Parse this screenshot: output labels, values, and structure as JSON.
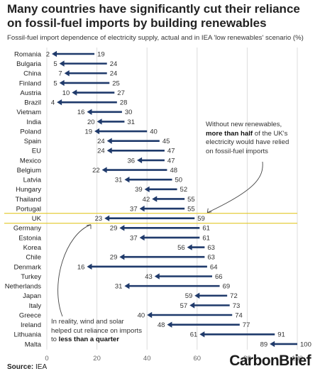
{
  "header": {
    "title": "Many countries have significantly cut their reliance on fossil-fuel imports by building renewables",
    "subtitle": "Fossil-fuel import dependence of electricity supply, actual and in IEA 'low renewables' scenario (%)"
  },
  "footer": {
    "source_label": "Source:",
    "source_value": "IEA",
    "brand": "CarbonBrief"
  },
  "annotations": {
    "uk_note": {
      "line1": "Without new renewables,",
      "bold": "more than half",
      "line2_rest": " of the UK's",
      "line3": "electricity would have relied",
      "line4": "on fossil-fuel imports"
    },
    "reality_note": {
      "line1": "In reality, wind and solar",
      "line2": "helped cut reliance on imports",
      "line3_pre": "to ",
      "bold": "less than a quarter"
    }
  },
  "colors": {
    "arrow": "#1f3a6b",
    "grid": "#dcdcdc",
    "text": "#333333",
    "highlight": "#e3c829"
  },
  "chart_data": {
    "type": "arrow-dot",
    "xlim": [
      0,
      100
    ],
    "xticks": [
      0,
      20,
      40,
      60,
      80,
      100
    ],
    "grid": true,
    "highlight_category": "UK",
    "series": [
      {
        "key": "scenario"
      },
      {
        "key": "actual"
      }
    ],
    "categories": [
      "Romania",
      "Bulgaria",
      "China",
      "Finland",
      "Austria",
      "Brazil",
      "Vietnam",
      "India",
      "Poland",
      "Spain",
      "EU",
      "Mexico",
      "Belgium",
      "Latvia",
      "Hungary",
      "Thailand",
      "Portugal",
      "UK",
      "Germany",
      "Estonia",
      "Korea",
      "Chile",
      "Denmark",
      "Turkey",
      "Netherlands",
      "Japan",
      "Italy",
      "Greece",
      "Ireland",
      "Lithuania",
      "Malta"
    ],
    "scenario": [
      19,
      24,
      24,
      25,
      27,
      28,
      30,
      31,
      40,
      45,
      47,
      47,
      48,
      50,
      52,
      55,
      55,
      59,
      61,
      61,
      63,
      63,
      64,
      66,
      69,
      72,
      73,
      74,
      77,
      91,
      100
    ],
    "actual": [
      2,
      5,
      7,
      5,
      10,
      4,
      16,
      20,
      19,
      24,
      24,
      36,
      22,
      31,
      39,
      42,
      37,
      23,
      29,
      37,
      56,
      29,
      16,
      43,
      31,
      59,
      57,
      40,
      48,
      61,
      89
    ]
  }
}
